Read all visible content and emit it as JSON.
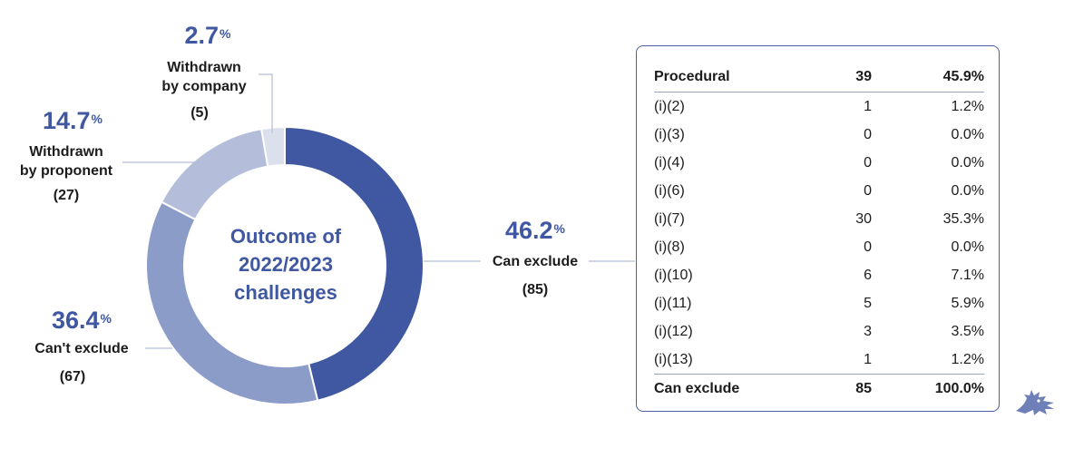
{
  "chart_data": {
    "type": "pie",
    "title": "Outcome of 2022/2023 challenges",
    "slices": [
      {
        "name": "Can exclude",
        "percent": 46.2,
        "count": 85,
        "color": "#3f58a1"
      },
      {
        "name": "Can't exclude",
        "percent": 36.4,
        "count": 67,
        "color": "#8b9cc9"
      },
      {
        "name": "Withdrawn by proponent",
        "percent": 14.7,
        "count": 27,
        "color": "#b4bedb"
      },
      {
        "name": "Withdrawn by company",
        "percent": 2.7,
        "count": 5,
        "color": "#dbe0ed"
      }
    ]
  },
  "center_title_lines": [
    "Outcome of",
    "2022/2023",
    "challenges"
  ],
  "labels": {
    "can_exclude": {
      "pct": "46.2",
      "line1": "Can exclude",
      "count": "(85)"
    },
    "cant_exclude": {
      "pct": "36.4",
      "line1": "Can't exclude",
      "count": "(67)"
    },
    "withdrawn_proponent": {
      "pct": "14.7",
      "line1": "Withdrawn",
      "line2": "by proponent",
      "count": "(27)"
    },
    "withdrawn_company": {
      "pct": "2.7",
      "line1": "Withdrawn",
      "line2": "by company",
      "count": "(5)"
    },
    "percent_sign": "%"
  },
  "table": {
    "header": [
      "Procedural",
      "39",
      "45.9%"
    ],
    "rows": [
      [
        "(i)(2)",
        "1",
        "1.2%"
      ],
      [
        "(i)(3)",
        "0",
        "0.0%"
      ],
      [
        "(i)(4)",
        "0",
        "0.0%"
      ],
      [
        "(i)(6)",
        "0",
        "0.0%"
      ],
      [
        "(i)(7)",
        "30",
        "35.3%"
      ],
      [
        "(i)(8)",
        "0",
        "0.0%"
      ],
      [
        "(i)(10)",
        "6",
        "7.1%"
      ],
      [
        "(i)(11)",
        "5",
        "5.9%"
      ],
      [
        "(i)(12)",
        "3",
        "3.5%"
      ],
      [
        "(i)(13)",
        "1",
        "1.2%"
      ]
    ],
    "footer": [
      "Can exclude",
      "85",
      "100.0%"
    ]
  },
  "colors": {
    "accent": "#3f58a1",
    "leader": "#b4bedb",
    "border": "#4a5fa5"
  },
  "icons": {
    "logo": "dragon-logo-icon"
  }
}
